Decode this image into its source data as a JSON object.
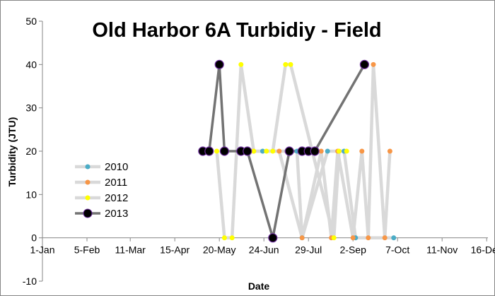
{
  "chart_data": {
    "type": "line",
    "title": "Old Harbor 6A Turbidiy - Field",
    "xlabel": "Date",
    "ylabel": "Turbidity (JTU)",
    "ylim": [
      -10,
      50
    ],
    "yticks": [
      -10,
      0,
      10,
      20,
      30,
      40,
      50
    ],
    "x_unit": "day of year (0 = 1-Jan)",
    "xticks": [
      {
        "label": "1-Jan",
        "day": 0
      },
      {
        "label": "5-Feb",
        "day": 35
      },
      {
        "label": "11-Mar",
        "day": 69
      },
      {
        "label": "15-Apr",
        "day": 104
      },
      {
        "label": "20-May",
        "day": 139
      },
      {
        "label": "24-Jun",
        "day": 174
      },
      {
        "label": "29-Jul",
        "day": 209
      },
      {
        "label": "2-Sep",
        "day": 244
      },
      {
        "label": "7-Oct",
        "day": 279
      },
      {
        "label": "11-Nov",
        "day": 314
      },
      {
        "label": "16-Dec",
        "day": 349
      }
    ],
    "grid": false,
    "legend": "left-middle",
    "series": [
      {
        "name": "2010",
        "color": "#4bacc6",
        "x": [
          173,
          200,
          204,
          224,
          237,
          246,
          276
        ],
        "y": [
          20,
          20,
          0,
          20,
          20,
          0,
          0
        ]
      },
      {
        "name": "2011",
        "color": "#f79646",
        "x": [
          166,
          186,
          204,
          219,
          227,
          232,
          244,
          251,
          256,
          260,
          269,
          273
        ],
        "y": [
          20,
          20,
          0,
          20,
          0,
          20,
          0,
          20,
          0,
          40,
          0,
          20
        ]
      },
      {
        "name": "2012",
        "color": "#ffff00",
        "x": [
          137,
          143,
          149,
          156,
          166,
          176,
          181,
          191,
          195,
          229,
          233,
          239
        ],
        "y": [
          20,
          0,
          0,
          40,
          20,
          20,
          20,
          40,
          40,
          0,
          20,
          20
        ]
      },
      {
        "name": "2013",
        "color": "#000000",
        "x": [
          126,
          131,
          139,
          143,
          156,
          161,
          181,
          194,
          204,
          209,
          214,
          253
        ],
        "y": [
          20,
          20,
          40,
          20,
          20,
          20,
          0,
          20,
          20,
          20,
          20,
          40
        ]
      }
    ]
  }
}
